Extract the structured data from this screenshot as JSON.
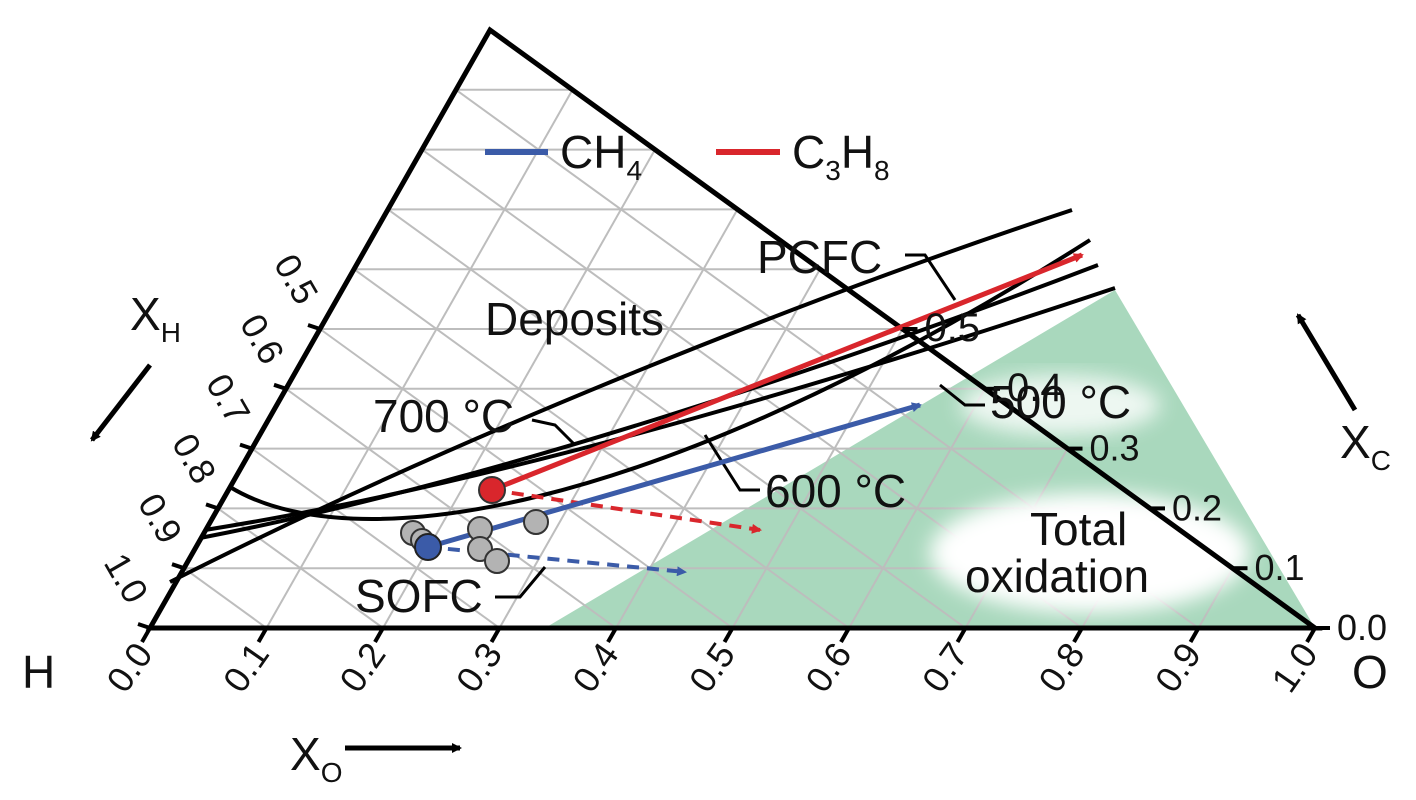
{
  "corners": {
    "h": "H",
    "o": "O"
  },
  "axes": {
    "xo": {
      "main": "X",
      "sub": "O"
    },
    "xh": {
      "main": "X",
      "sub": "H"
    },
    "xc": {
      "main": "X",
      "sub": "C"
    }
  },
  "bottom_ticks": [
    "0.0",
    "0.1",
    "0.2",
    "0.3",
    "0.4",
    "0.5",
    "0.6",
    "0.7",
    "0.8",
    "0.9",
    "1.0"
  ],
  "left_ticks": [
    "0.5",
    "0.6",
    "0.7",
    "0.8",
    "0.9",
    "1.0"
  ],
  "right_ticks": [
    "0.0",
    "0.1",
    "0.2",
    "0.3",
    "0.4",
    "0.5"
  ],
  "legend": {
    "ch4": {
      "pre": "CH",
      "sub": "4",
      "color": "#3b5ba8"
    },
    "c3h8": {
      "pre": "C",
      "sub1": "3",
      "mid": "H",
      "sub2": "8",
      "color": "#d9262c"
    }
  },
  "labels": {
    "deposits": "Deposits",
    "total_oxidation_1": "Total",
    "total_oxidation_2": "oxidation",
    "pcfc": "PCFC",
    "sofc": "SOFC",
    "t700": "700 °C",
    "t600": "600 °C",
    "t500": "500 °C"
  },
  "colors": {
    "oxidation_region": "#a9d8bd",
    "grid": "#bdbdbd",
    "marker_gray": "#b3b3b3"
  }
}
